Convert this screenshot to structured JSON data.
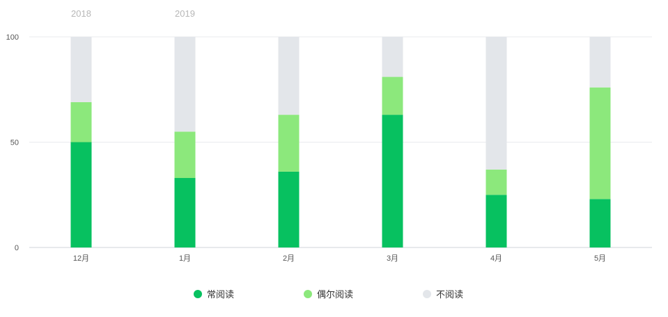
{
  "chart_data": {
    "type": "bar",
    "stacked": true,
    "year_labels": [
      {
        "text": "2018",
        "category_index": 0
      },
      {
        "text": "2019",
        "category_index": 1
      }
    ],
    "categories": [
      "12月",
      "1月",
      "2月",
      "3月",
      "4月",
      "5月"
    ],
    "y_ticks": [
      "100",
      "50",
      "0"
    ],
    "ylim": [
      0,
      100
    ],
    "grid": true,
    "legend_position": "bottom",
    "series": [
      {
        "name": "常阅读",
        "color": "#07c160",
        "values": [
          50,
          33,
          36,
          63,
          25,
          23
        ]
      },
      {
        "name": "偶尔阅读",
        "color": "#8ce87c",
        "values": [
          19,
          22,
          27,
          18,
          12,
          53
        ]
      },
      {
        "name": "不阅读",
        "color": "#e3e6ea",
        "values": [
          31,
          45,
          37,
          19,
          63,
          24
        ]
      }
    ]
  }
}
